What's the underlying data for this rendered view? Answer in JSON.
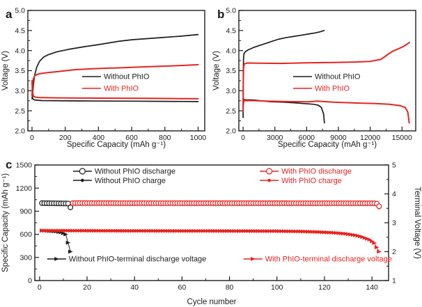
{
  "figure": {
    "background": "#ffffff",
    "colors": {
      "black": "#1c1c1c",
      "red": "#e8231f",
      "frame": "#1c1c1c",
      "tick_text": "#1c1c1c"
    }
  },
  "panels": {
    "a": {
      "label": "a"
    },
    "b": {
      "label": "b"
    },
    "c": {
      "label": "c"
    }
  },
  "chart_data": [
    {
      "id": "a",
      "type": "line",
      "title": "",
      "xlabel": "Specific Capacity (mAh g⁻¹)",
      "ylabel": "Voltage (V)",
      "xlim": [
        -25,
        1040
      ],
      "ylim": [
        2.0,
        5.0
      ],
      "xticks": [
        0,
        200,
        400,
        600,
        800,
        1000
      ],
      "yticks": [
        2.0,
        2.5,
        3.0,
        3.5,
        4.0,
        4.5,
        5.0
      ],
      "x_minor_step": 100,
      "y_minor_step": 0.25,
      "ytick_decimals": 1,
      "grid": false,
      "legend_position": "center",
      "legend": [
        {
          "label": "Without PhIO",
          "color": "black",
          "marker": "line",
          "pos": [
            0.307,
            0.549
          ]
        },
        {
          "label": "With PhIO",
          "color": "red",
          "marker": "line",
          "pos": [
            0.307,
            0.647
          ]
        }
      ],
      "series": [
        {
          "name": "without-phio-charge",
          "color": "black",
          "width": 1.7,
          "points": [
            [
              0,
              2.8
            ],
            [
              6,
              3.05
            ],
            [
              14,
              3.35
            ],
            [
              28,
              3.58
            ],
            [
              45,
              3.73
            ],
            [
              70,
              3.84
            ],
            [
              100,
              3.9
            ],
            [
              150,
              3.97
            ],
            [
              220,
              4.03
            ],
            [
              320,
              4.1
            ],
            [
              420,
              4.16
            ],
            [
              520,
              4.23
            ],
            [
              600,
              4.27
            ],
            [
              700,
              4.3
            ],
            [
              800,
              4.33
            ],
            [
              900,
              4.36
            ],
            [
              1000,
              4.4
            ]
          ]
        },
        {
          "name": "without-phio-discharge",
          "color": "black",
          "width": 1.7,
          "points": [
            [
              0,
              2.92
            ],
            [
              4,
              2.8
            ],
            [
              15,
              2.77
            ],
            [
              60,
              2.755
            ],
            [
              300,
              2.745
            ],
            [
              600,
              2.74
            ],
            [
              1000,
              2.73
            ]
          ]
        },
        {
          "name": "with-phio-charge",
          "color": "red",
          "width": 2.0,
          "points": [
            [
              0,
              2.88
            ],
            [
              3,
              3.12
            ],
            [
              8,
              3.3
            ],
            [
              18,
              3.38
            ],
            [
              40,
              3.42
            ],
            [
              90,
              3.45
            ],
            [
              160,
              3.48
            ],
            [
              250,
              3.52
            ],
            [
              350,
              3.545
            ],
            [
              450,
              3.56
            ],
            [
              550,
              3.575
            ],
            [
              650,
              3.59
            ],
            [
              750,
              3.605
            ],
            [
              850,
              3.62
            ],
            [
              930,
              3.635
            ],
            [
              1000,
              3.65
            ]
          ]
        },
        {
          "name": "with-phio-discharge",
          "color": "red",
          "width": 2.0,
          "points": [
            [
              0,
              3.25
            ],
            [
              2,
              3.0
            ],
            [
              6,
              2.89
            ],
            [
              15,
              2.845
            ],
            [
              40,
              2.83
            ],
            [
              150,
              2.822
            ],
            [
              400,
              2.815
            ],
            [
              700,
              2.81
            ],
            [
              1000,
              2.8
            ]
          ]
        }
      ]
    },
    {
      "id": "b",
      "type": "line",
      "title": "",
      "xlabel": "Specific Capacity (mAh g⁻¹)",
      "ylabel": "Voltage (V)",
      "xlim": [
        -400,
        16300
      ],
      "ylim": [
        2.0,
        5.0
      ],
      "xticks": [
        0,
        3000,
        6000,
        9000,
        12000,
        15000
      ],
      "yticks": [
        2.0,
        2.5,
        3.0,
        3.5,
        4.0,
        4.5,
        5.0
      ],
      "x_minor_step": 1500,
      "y_minor_step": 0.25,
      "ytick_decimals": 1,
      "grid": false,
      "legend_position": "center",
      "legend": [
        {
          "label": "Without PhIO",
          "color": "black",
          "marker": "line",
          "pos": [
            0.307,
            0.549
          ]
        },
        {
          "label": "With PhIO",
          "color": "red",
          "marker": "line",
          "pos": [
            0.307,
            0.647
          ]
        }
      ],
      "series": [
        {
          "name": "without-phio-charge",
          "color": "black",
          "width": 1.7,
          "points": [
            [
              0,
              2.33
            ],
            [
              15,
              3.4
            ],
            [
              40,
              3.8
            ],
            [
              80,
              3.92
            ],
            [
              200,
              3.97
            ],
            [
              500,
              4.02
            ],
            [
              1000,
              4.08
            ],
            [
              1700,
              4.14
            ],
            [
              2500,
              4.21
            ],
            [
              3300,
              4.28
            ],
            [
              4000,
              4.32
            ],
            [
              4700,
              4.35
            ],
            [
              5400,
              4.38
            ],
            [
              6100,
              4.41
            ],
            [
              6800,
              4.44
            ],
            [
              7300,
              4.47
            ],
            [
              7650,
              4.5
            ]
          ]
        },
        {
          "name": "without-phio-discharge",
          "color": "black",
          "width": 1.7,
          "points": [
            [
              0,
              2.8
            ],
            [
              150,
              2.775
            ],
            [
              1000,
              2.77
            ],
            [
              1800,
              2.745
            ],
            [
              2600,
              2.725
            ],
            [
              3800,
              2.715
            ],
            [
              4800,
              2.7
            ],
            [
              5800,
              2.68
            ],
            [
              6600,
              2.665
            ],
            [
              7100,
              2.64
            ],
            [
              7400,
              2.58
            ],
            [
              7600,
              2.42
            ],
            [
              7680,
              2.2
            ]
          ]
        },
        {
          "name": "with-phio-charge",
          "color": "red",
          "width": 2.0,
          "points": [
            [
              0,
              2.48
            ],
            [
              20,
              3.2
            ],
            [
              50,
              3.58
            ],
            [
              120,
              3.67
            ],
            [
              400,
              3.69
            ],
            [
              1500,
              3.685
            ],
            [
              3500,
              3.68
            ],
            [
              6000,
              3.695
            ],
            [
              8500,
              3.705
            ],
            [
              10500,
              3.715
            ],
            [
              12000,
              3.73
            ],
            [
              13000,
              3.78
            ],
            [
              13600,
              3.89
            ],
            [
              14100,
              3.98
            ],
            [
              14700,
              4.05
            ],
            [
              15200,
              4.11
            ],
            [
              15700,
              4.2
            ]
          ]
        },
        {
          "name": "with-phio-discharge",
          "color": "red",
          "width": 2.0,
          "points": [
            [
              0,
              2.62
            ],
            [
              80,
              2.755
            ],
            [
              1000,
              2.755
            ],
            [
              2200,
              2.74
            ],
            [
              4000,
              2.73
            ],
            [
              6200,
              2.725
            ],
            [
              7000,
              2.74
            ],
            [
              8500,
              2.715
            ],
            [
              10500,
              2.695
            ],
            [
              12500,
              2.68
            ],
            [
              13800,
              2.665
            ],
            [
              14800,
              2.63
            ],
            [
              15300,
              2.585
            ],
            [
              15550,
              2.47
            ],
            [
              15680,
              2.2
            ]
          ]
        }
      ]
    },
    {
      "id": "c",
      "type": "scatter",
      "title": "",
      "xlabel": "Cycle number",
      "ylabel_left": "Specific Capacity (mAh g⁻¹)",
      "ylabel_right": "Terminal Voltage (V)",
      "xlim": [
        -2,
        147
      ],
      "ylim_left": [
        0,
        1500
      ],
      "ylim_right": [
        1,
        5
      ],
      "xticks": [
        0,
        20,
        40,
        60,
        80,
        100,
        120,
        140
      ],
      "x_minor_step": 10,
      "yticks_left": [
        0,
        300,
        600,
        900,
        1200,
        1500
      ],
      "y_minor_step_left": 150,
      "yticks_right": [
        1,
        2,
        3,
        4,
        5
      ],
      "y_minor_step_right": 0.5,
      "grid": false,
      "legend": [
        {
          "label": "Without PhIO discharge",
          "color": "black",
          "marker": "open-circle",
          "pos": [
            0.108,
            0.054
          ]
        },
        {
          "label": "Without PhIO charge",
          "color": "black",
          "marker": "filled-circle",
          "pos": [
            0.108,
            0.133
          ]
        },
        {
          "label": "With PhIO discharge",
          "color": "red",
          "marker": "open-circle",
          "pos": [
            0.636,
            0.054
          ]
        },
        {
          "label": "With PhIO charge",
          "color": "red",
          "marker": "filled-circle",
          "pos": [
            0.636,
            0.133
          ]
        },
        {
          "label": "Without PhIO-terminal discharge voltage",
          "color": "black",
          "marker": "right-triangle",
          "pos": [
            0.035,
            0.813
          ]
        },
        {
          "label": "With PhIO-terminal discharge voltage",
          "color": "red",
          "marker": "right-triangle",
          "pos": [
            0.59,
            0.813
          ]
        }
      ],
      "series": [
        {
          "name": "without-phio-charge",
          "axis": "left",
          "marker": "filled-circle",
          "color": "black",
          "x_range": [
            1,
            13
          ],
          "x_step": 1,
          "anchors": [
            [
              1,
              990
            ],
            [
              12,
              985
            ],
            [
              13,
              975
            ]
          ]
        },
        {
          "name": "without-phio-discharge",
          "axis": "left",
          "marker": "open-circle",
          "color": "black",
          "x_range": [
            1,
            13
          ],
          "x_step": 1,
          "anchors": [
            [
              1,
              1005
            ],
            [
              12,
              1000
            ],
            [
              13,
              950
            ]
          ]
        },
        {
          "name": "with-phio-charge",
          "axis": "left",
          "marker": "filled-circle",
          "color": "red",
          "x_range": [
            14,
            143
          ],
          "x_step": 1,
          "anchors": [
            [
              14,
              990
            ],
            [
              141,
              990
            ],
            [
              142,
              983
            ],
            [
              143,
              945
            ]
          ]
        },
        {
          "name": "with-phio-discharge",
          "axis": "left",
          "marker": "open-circle",
          "color": "red",
          "x_range": [
            14,
            143
          ],
          "x_step": 1,
          "anchors": [
            [
              14,
              1005
            ],
            [
              141,
              1003
            ],
            [
              142,
              998
            ],
            [
              143,
              965
            ]
          ]
        },
        {
          "name": "without-phio-terminal-discharge-voltage",
          "axis": "right",
          "marker": "right-triangle",
          "color": "black",
          "x_range": [
            1,
            13
          ],
          "x_step": 1,
          "anchors": [
            [
              1,
              2.73
            ],
            [
              5,
              2.71
            ],
            [
              7,
              2.7
            ],
            [
              9,
              2.67
            ],
            [
              10,
              2.64
            ],
            [
              11,
              2.6
            ],
            [
              12,
              2.31
            ],
            [
              13,
              2.0
            ]
          ]
        },
        {
          "name": "with-phio-terminal-discharge-voltage",
          "axis": "right",
          "marker": "right-triangle",
          "color": "red",
          "x_range": [
            1,
            143
          ],
          "x_step": 1,
          "anchors": [
            [
              1,
              2.73
            ],
            [
              40,
              2.72
            ],
            [
              80,
              2.715
            ],
            [
              100,
              2.71
            ],
            [
              110,
              2.7
            ],
            [
              118,
              2.68
            ],
            [
              124,
              2.655
            ],
            [
              129,
              2.62
            ],
            [
              133,
              2.57
            ],
            [
              136,
              2.51
            ],
            [
              139,
              2.42
            ],
            [
              141,
              2.3
            ],
            [
              142,
              2.15
            ],
            [
              143,
              2.0
            ]
          ]
        }
      ]
    }
  ]
}
